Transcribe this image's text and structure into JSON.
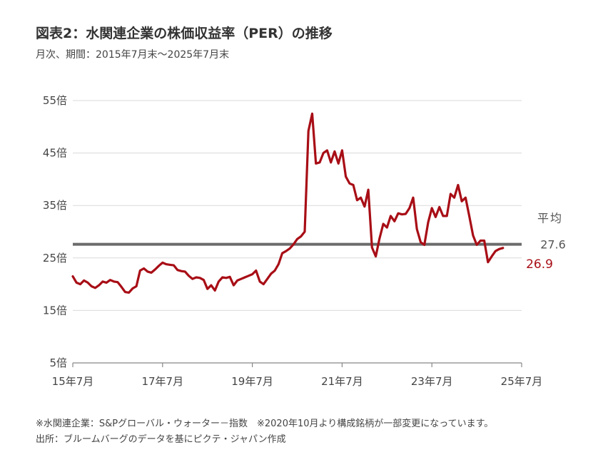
{
  "title": "図表2：水関連企業の株価収益率（PER）の推移",
  "subtitle": "月次、期間：2015年7月末～2025年7月末",
  "notes": [
    "※水関連企業：S&Pグローバル・ウォーター－指数　※2020年10月より構成銘柄が一部変更になっています。",
    "出所：ブルームバーグのデータを基にピクテ・ジャパン作成"
  ],
  "chart_data": {
    "type": "line",
    "x_range": [
      "2015-07",
      "2025-07"
    ],
    "ylim": [
      5,
      55
    ],
    "y_ticks": [
      5,
      15,
      25,
      35,
      45,
      55
    ],
    "y_tick_labels": [
      "5倍",
      "15倍",
      "25倍",
      "35倍",
      "45倍",
      "55倍"
    ],
    "x_tick_labels": [
      "15年7月",
      "17年7月",
      "19年7月",
      "21年7月",
      "23年7月",
      "25年7月"
    ],
    "x_tick_months": [
      "2015-07",
      "2017-07",
      "2019-07",
      "2021-07",
      "2023-07",
      "2025-07"
    ],
    "grid": "horizontal",
    "color": "#a80e16",
    "values": [
      21.5,
      20.3,
      20.0,
      20.7,
      20.3,
      19.6,
      19.3,
      19.8,
      20.5,
      20.3,
      20.8,
      20.5,
      20.4,
      19.5,
      18.5,
      18.4,
      19.2,
      19.6,
      22.6,
      23.0,
      22.4,
      22.2,
      22.8,
      23.5,
      24.1,
      23.8,
      23.7,
      23.6,
      22.7,
      22.5,
      22.4,
      21.6,
      21.0,
      21.3,
      21.2,
      20.8,
      19.1,
      19.8,
      18.8,
      20.5,
      21.3,
      21.2,
      21.4,
      19.8,
      20.7,
      21.0,
      21.3,
      21.6,
      21.9,
      22.6,
      20.5,
      20.0,
      21.0,
      22.0,
      22.6,
      23.8,
      25.9,
      26.3,
      26.8,
      27.6,
      28.6,
      29.1,
      30.0,
      49.2,
      52.5,
      43.0,
      43.2,
      45.0,
      45.5,
      43.2,
      45.3,
      43.0,
      45.5,
      40.5,
      39.2,
      38.9,
      36.0,
      36.5,
      34.8,
      38.0,
      27.0,
      25.3,
      28.7,
      31.5,
      30.8,
      33.0,
      32.0,
      33.5,
      33.3,
      33.4,
      34.5,
      36.5,
      30.5,
      28.0,
      27.5,
      31.8,
      34.5,
      32.8,
      34.7,
      33.0,
      33.0,
      37.2,
      36.5,
      38.9,
      35.8,
      36.5,
      33.0,
      29.3,
      27.5,
      28.3,
      28.3,
      24.2,
      25.3,
      26.3,
      26.7,
      26.9
    ],
    "average": {
      "label": "平均",
      "value": 27.6,
      "value_text": "27.6",
      "color": "#6b6b6b"
    },
    "last_value_text": "26.9"
  }
}
